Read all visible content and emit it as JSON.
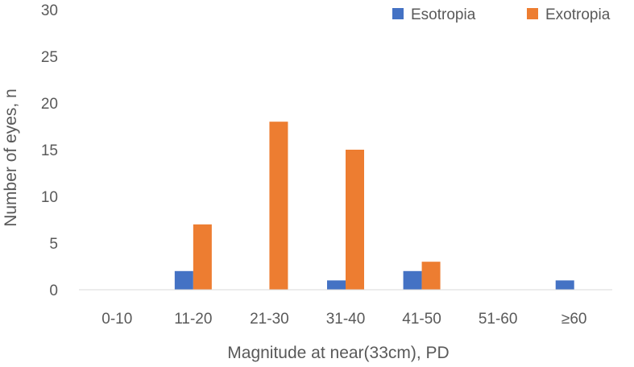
{
  "chart_data": {
    "type": "bar",
    "categories": [
      "0-10",
      "11-20",
      "21-30",
      "31-40",
      "41-50",
      "51-60",
      "≥60"
    ],
    "series": [
      {
        "name": "Esotropia",
        "values": [
          0,
          2,
          0,
          1,
          2,
          0,
          1
        ],
        "color": "#4472C4"
      },
      {
        "name": "Exotropia",
        "values": [
          0,
          7,
          18,
          15,
          3,
          0,
          0
        ],
        "color": "#ED7D31"
      }
    ],
    "xlabel": "Magnitude at near(33cm), PD",
    "ylabel": "Number of eyes, n",
    "ylim": [
      0,
      30
    ],
    "yticks": [
      0,
      5,
      10,
      15,
      20,
      25,
      30
    ],
    "grid": false,
    "legend": "top-right"
  }
}
